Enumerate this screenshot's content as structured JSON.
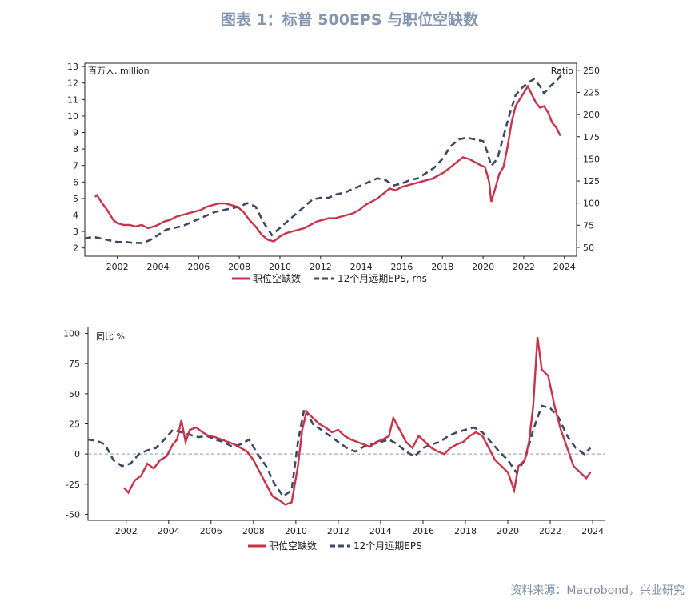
{
  "header": {
    "title": "图表 1：标普 500EPS 与职位空缺数"
  },
  "footer": {
    "source": "资料来源：Macrobond，兴业研究"
  },
  "colors": {
    "job_openings": "#c8334a",
    "eps": "#3c4a66",
    "title": "#8497b0",
    "zero_line": "#8a9ab5"
  },
  "chart_data": [
    {
      "type": "line",
      "unit_left": "百万人, million",
      "unit_right": "Ratio",
      "x_ticks": [
        "2002",
        "2004",
        "2006",
        "2008",
        "2010",
        "2012",
        "2014",
        "2016",
        "2018",
        "2020",
        "2022",
        "2024"
      ],
      "xlim": [
        2000.4,
        2024.6
      ],
      "ylim_left": [
        1.5,
        13.2
      ],
      "ylim_right": [
        40,
        258
      ],
      "y_ticks_left": [
        2,
        3,
        4,
        5,
        6,
        7,
        8,
        9,
        10,
        11,
        12,
        13
      ],
      "y_ticks_right": [
        50,
        75,
        100,
        125,
        150,
        175,
        200,
        225,
        250
      ],
      "legend": [
        "职位空缺数",
        "12个月远期EPS, rhs"
      ],
      "series": [
        {
          "name": "职位空缺数",
          "axis": "left",
          "x": [
            2000.9,
            2001.0,
            2001.2,
            2001.5,
            2001.8,
            2002.0,
            2002.3,
            2002.6,
            2002.9,
            2003.2,
            2003.5,
            2003.8,
            2004.0,
            2004.3,
            2004.6,
            2004.9,
            2005.2,
            2005.5,
            2005.8,
            2006.1,
            2006.4,
            2006.7,
            2007.0,
            2007.3,
            2007.6,
            2007.9,
            2008.2,
            2008.5,
            2008.8,
            2009.1,
            2009.4,
            2009.7,
            2010.0,
            2010.3,
            2010.6,
            2010.9,
            2011.2,
            2011.5,
            2011.8,
            2012.1,
            2012.4,
            2012.7,
            2013.0,
            2013.3,
            2013.6,
            2013.9,
            2014.2,
            2014.5,
            2014.8,
            2015.1,
            2015.4,
            2015.7,
            2016.0,
            2016.3,
            2016.6,
            2016.9,
            2017.2,
            2017.5,
            2017.8,
            2018.1,
            2018.4,
            2018.7,
            2019.0,
            2019.3,
            2019.6,
            2019.9,
            2020.1,
            2020.3,
            2020.4,
            2020.6,
            2020.8,
            2021.0,
            2021.2,
            2021.4,
            2021.6,
            2021.8,
            2022.0,
            2022.2,
            2022.4,
            2022.6,
            2022.8,
            2023.0,
            2023.2,
            2023.4,
            2023.6,
            2023.8
          ],
          "y": [
            5.1,
            5.2,
            4.8,
            4.3,
            3.7,
            3.5,
            3.4,
            3.4,
            3.3,
            3.4,
            3.2,
            3.3,
            3.4,
            3.6,
            3.7,
            3.9,
            4.0,
            4.1,
            4.2,
            4.3,
            4.5,
            4.6,
            4.7,
            4.7,
            4.6,
            4.5,
            4.2,
            3.7,
            3.3,
            2.8,
            2.5,
            2.4,
            2.7,
            2.9,
            3.0,
            3.1,
            3.2,
            3.4,
            3.6,
            3.7,
            3.8,
            3.8,
            3.9,
            4.0,
            4.1,
            4.3,
            4.6,
            4.8,
            5.0,
            5.3,
            5.6,
            5.5,
            5.7,
            5.8,
            5.9,
            6.0,
            6.1,
            6.2,
            6.4,
            6.6,
            6.9,
            7.2,
            7.5,
            7.4,
            7.2,
            7.0,
            6.9,
            6.0,
            4.8,
            5.6,
            6.5,
            6.9,
            8.1,
            9.6,
            10.6,
            11.0,
            11.4,
            11.8,
            11.3,
            10.8,
            10.5,
            10.6,
            10.2,
            9.6,
            9.3,
            8.8
          ]
        },
        {
          "name": "12个月远期EPS, rhs",
          "axis": "right",
          "x": [
            2000.4,
            2000.8,
            2001.2,
            2001.6,
            2002.0,
            2002.4,
            2002.8,
            2003.2,
            2003.6,
            2004.0,
            2004.4,
            2004.8,
            2005.2,
            2005.6,
            2006.0,
            2006.4,
            2006.8,
            2007.2,
            2007.6,
            2008.0,
            2008.4,
            2008.8,
            2009.2,
            2009.6,
            2010.0,
            2010.4,
            2010.8,
            2011.2,
            2011.6,
            2012.0,
            2012.4,
            2012.8,
            2013.2,
            2013.6,
            2014.0,
            2014.4,
            2014.8,
            2015.2,
            2015.6,
            2016.0,
            2016.4,
            2016.8,
            2017.2,
            2017.6,
            2018.0,
            2018.4,
            2018.8,
            2019.2,
            2019.6,
            2020.0,
            2020.2,
            2020.4,
            2020.7,
            2021.0,
            2021.3,
            2021.6,
            2021.9,
            2022.2,
            2022.5,
            2022.8,
            2023.0,
            2023.3,
            2023.6,
            2023.9
          ],
          "y": [
            60,
            62,
            60,
            58,
            56,
            56,
            55,
            55,
            58,
            64,
            70,
            72,
            74,
            78,
            82,
            86,
            90,
            92,
            94,
            96,
            100,
            96,
            78,
            64,
            72,
            80,
            88,
            96,
            104,
            106,
            106,
            110,
            112,
            116,
            120,
            124,
            128,
            126,
            120,
            122,
            126,
            128,
            134,
            140,
            150,
            164,
            172,
            174,
            172,
            170,
            158,
            142,
            150,
            175,
            200,
            222,
            230,
            236,
            240,
            232,
            224,
            232,
            238,
            246
          ]
        }
      ]
    },
    {
      "type": "line",
      "unit_left": "同比 %",
      "x_ticks": [
        "2002",
        "2004",
        "2006",
        "2008",
        "2010",
        "2012",
        "2014",
        "2016",
        "2018",
        "2020",
        "2022",
        "2024"
      ],
      "xlim": [
        2000.2,
        2024.6
      ],
      "ylim": [
        -55,
        105
      ],
      "y_ticks": [
        -50,
        -25,
        0,
        25,
        50,
        75,
        100
      ],
      "legend": [
        "职位空缺数",
        "12个月远期EPS"
      ],
      "series": [
        {
          "name": "职位空缺数",
          "x": [
            2001.9,
            2002.1,
            2002.4,
            2002.7,
            2003.0,
            2003.3,
            2003.6,
            2003.9,
            2004.2,
            2004.4,
            2004.6,
            2004.8,
            2005.0,
            2005.3,
            2005.6,
            2005.9,
            2006.2,
            2006.5,
            2006.8,
            2007.1,
            2007.4,
            2007.7,
            2008.0,
            2008.3,
            2008.6,
            2008.9,
            2009.2,
            2009.5,
            2009.8,
            2010.1,
            2010.3,
            2010.5,
            2010.8,
            2011.1,
            2011.4,
            2011.7,
            2012.0,
            2012.3,
            2012.6,
            2012.9,
            2013.2,
            2013.5,
            2013.8,
            2014.1,
            2014.4,
            2014.6,
            2014.9,
            2015.2,
            2015.5,
            2015.8,
            2016.1,
            2016.4,
            2016.7,
            2017.0,
            2017.3,
            2017.6,
            2017.9,
            2018.2,
            2018.5,
            2018.8,
            2019.1,
            2019.4,
            2019.7,
            2020.0,
            2020.3,
            2020.5,
            2020.8,
            2021.0,
            2021.2,
            2021.4,
            2021.6,
            2021.9,
            2022.2,
            2022.5,
            2022.8,
            2023.1,
            2023.4,
            2023.7,
            2023.9
          ],
          "y": [
            -28,
            -32,
            -22,
            -18,
            -8,
            -12,
            -5,
            -2,
            8,
            12,
            28,
            10,
            20,
            22,
            18,
            15,
            14,
            12,
            10,
            8,
            5,
            2,
            -5,
            -15,
            -25,
            -35,
            -38,
            -42,
            -40,
            -10,
            20,
            35,
            30,
            25,
            22,
            18,
            20,
            15,
            12,
            10,
            8,
            6,
            10,
            12,
            15,
            30,
            20,
            10,
            5,
            15,
            10,
            5,
            2,
            0,
            5,
            8,
            10,
            15,
            18,
            15,
            5,
            -5,
            -10,
            -15,
            -30,
            -10,
            -5,
            10,
            40,
            97,
            70,
            65,
            40,
            20,
            5,
            -10,
            -15,
            -20,
            -15
          ]
        },
        {
          "name": "12个月远期EPS",
          "x": [
            2000.2,
            2000.6,
            2001.0,
            2001.4,
            2001.8,
            2002.2,
            2002.6,
            2003.0,
            2003.4,
            2003.8,
            2004.2,
            2004.6,
            2005.0,
            2005.4,
            2005.8,
            2006.2,
            2006.6,
            2007.0,
            2007.4,
            2007.8,
            2008.2,
            2008.6,
            2009.0,
            2009.4,
            2009.8,
            2010.1,
            2010.4,
            2010.8,
            2011.2,
            2011.6,
            2012.0,
            2012.4,
            2012.8,
            2013.2,
            2013.6,
            2014.0,
            2014.4,
            2014.8,
            2015.2,
            2015.6,
            2016.0,
            2016.4,
            2016.8,
            2017.2,
            2017.6,
            2018.0,
            2018.4,
            2018.8,
            2019.2,
            2019.6,
            2020.0,
            2020.4,
            2020.8,
            2021.2,
            2021.6,
            2022.0,
            2022.4,
            2022.8,
            2023.2,
            2023.6,
            2023.9
          ],
          "y": [
            12,
            11,
            8,
            -5,
            -10,
            -8,
            0,
            3,
            5,
            12,
            20,
            18,
            16,
            14,
            15,
            12,
            10,
            6,
            8,
            12,
            0,
            -10,
            -25,
            -35,
            -30,
            10,
            38,
            25,
            20,
            15,
            10,
            5,
            2,
            6,
            8,
            10,
            12,
            8,
            2,
            -2,
            5,
            8,
            10,
            15,
            18,
            20,
            22,
            18,
            10,
            2,
            -5,
            -15,
            -5,
            20,
            40,
            38,
            30,
            15,
            5,
            0,
            5
          ]
        }
      ]
    }
  ]
}
